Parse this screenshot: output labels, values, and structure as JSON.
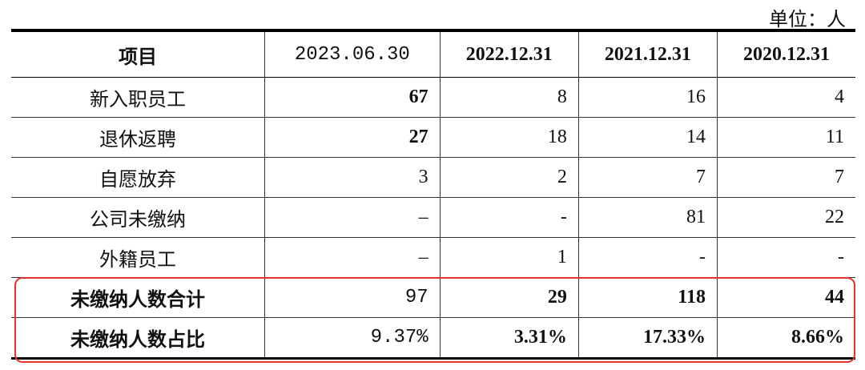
{
  "unit": "单位：人",
  "table": {
    "header": [
      "项目",
      "2023.06.30",
      "2022.12.31",
      "2021.12.31",
      "2020.12.31"
    ],
    "rows": [
      [
        "新入职员工",
        67,
        8,
        16,
        4
      ],
      [
        "退休返聘",
        27,
        18,
        14,
        11
      ],
      [
        "自愿放弃",
        3,
        2,
        7,
        7
      ],
      [
        "公司未缴纳",
        "–",
        "-",
        81,
        22
      ],
      [
        "外籍员工",
        "–",
        1,
        "-",
        "-"
      ],
      [
        "未缴纳人数合计",
        97,
        29,
        118,
        44
      ],
      [
        "未缴纳人数占比",
        "9.37%",
        "3.31%",
        "17.33%",
        "8.66%"
      ]
    ]
  }
}
